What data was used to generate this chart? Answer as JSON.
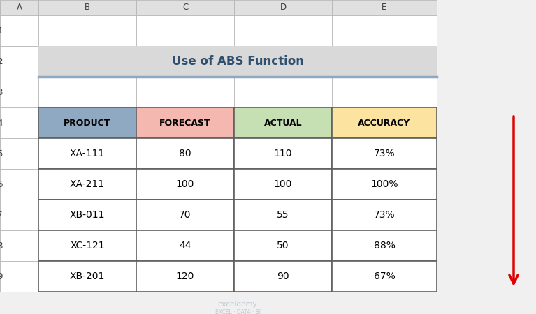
{
  "title": "Use of ABS Function",
  "title_bg": "#d9d9d9",
  "title_border": "#8ea9c1",
  "col_headers": [
    "PRODUCT",
    "FORECAST",
    "ACTUAL",
    "ACCURACY"
  ],
  "col_header_colors": [
    "#8ea9c1",
    "#f4b8b0",
    "#c6e0b4",
    "#fce4a0"
  ],
  "rows": [
    [
      "XA-111",
      "80",
      "110",
      "73%"
    ],
    [
      "XA-211",
      "100",
      "100",
      "100%"
    ],
    [
      "XB-011",
      "70",
      "55",
      "73%"
    ],
    [
      "XC-121",
      "44",
      "50",
      "88%"
    ],
    [
      "XB-201",
      "120",
      "90",
      "67%"
    ]
  ],
  "excel_col_labels": [
    "A",
    "B",
    "C",
    "D",
    "E"
  ],
  "bg_color": "#f0f0f0",
  "cell_bg": "#ffffff",
  "col_label_bg": "#e0e0e0",
  "row_label_bg": "#e8e8e8",
  "grid_color": "#b0b0b0",
  "arrow_color": "#e00000",
  "watermark_color": "#b8c4d0"
}
